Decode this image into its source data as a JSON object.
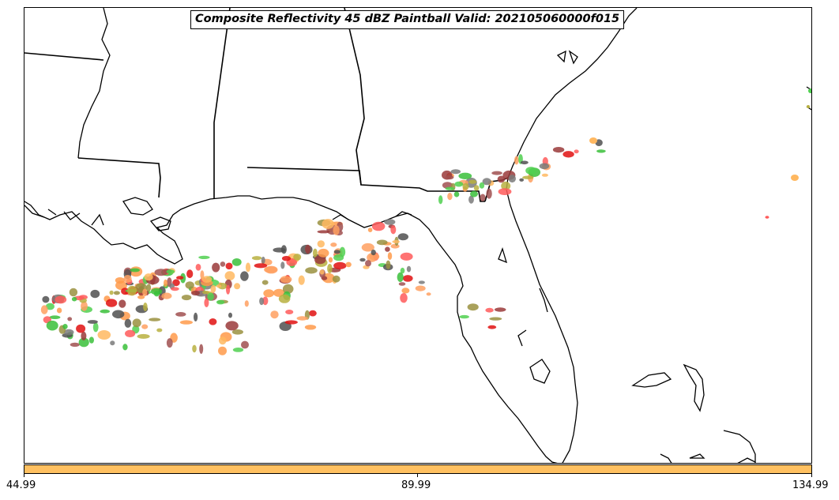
{
  "title": "Composite Reflectivity 45 dBZ Paintball Valid: 202105060000f015",
  "colorbar": {
    "color": "#ffc060",
    "ticks": [
      "44.99",
      "89.99",
      "134.99"
    ]
  },
  "paint_colors": [
    "#ff5a5a",
    "#ff9a4a",
    "#ffb860",
    "#b8b040",
    "#9a9040",
    "#3ac03a",
    "#50d050",
    "#9a3a3a",
    "#a05050",
    "#505050",
    "#7a7a7a",
    "#e01010",
    "#ffa060"
  ],
  "map_layers": [
    "coastline",
    "state-borders",
    "reflectivity-paintballs"
  ]
}
